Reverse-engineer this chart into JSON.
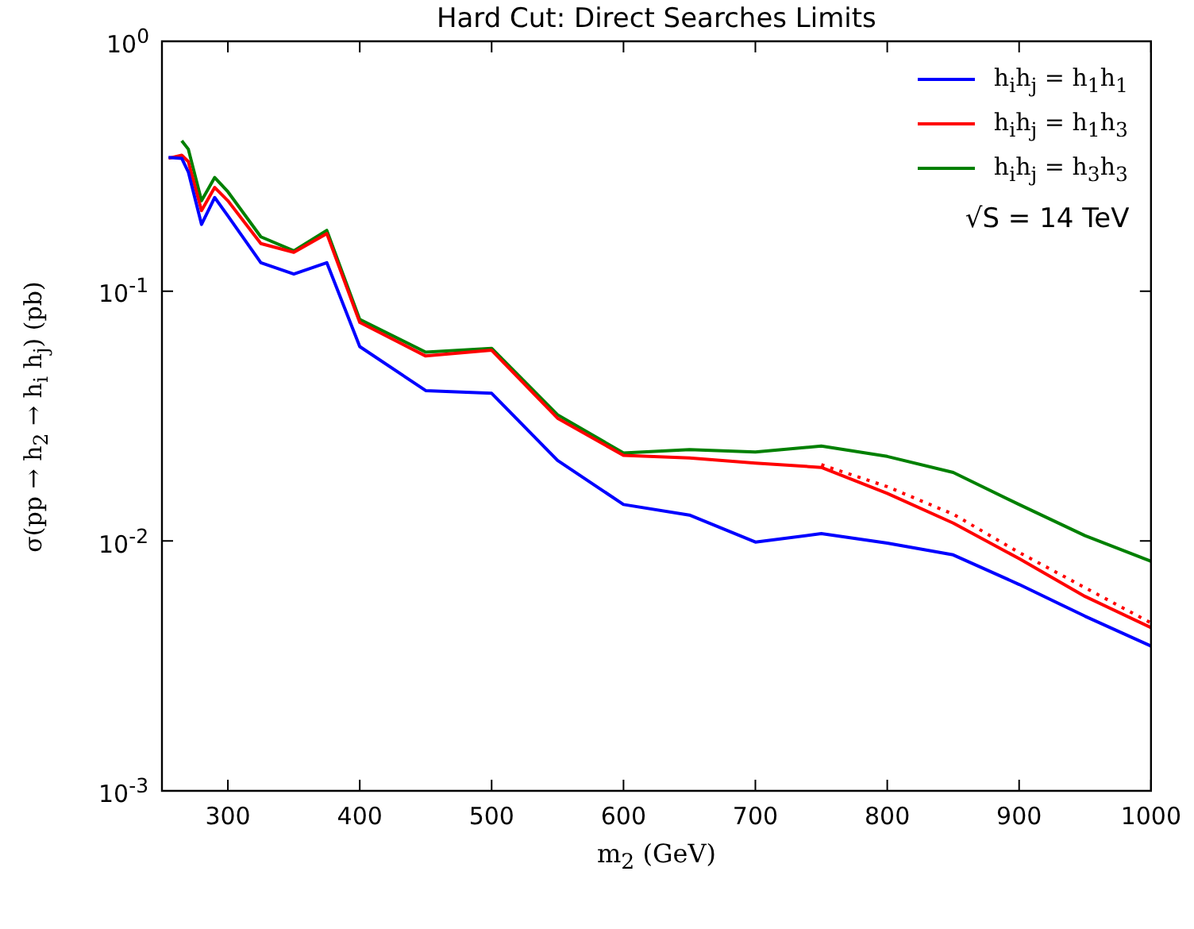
{
  "chart_data": {
    "type": "line",
    "title": "Hard Cut: Direct Searches Limits",
    "xlabel": "m$_{2}$ (GeV)",
    "ylabel": "σ(pp → h$_{2}$ → h$_{i}$ h$_{j}$) (pb)",
    "log": "y",
    "xlim": [
      250,
      1000
    ],
    "ylim": [
      0.001,
      1
    ],
    "xticks": [
      300,
      400,
      500,
      600,
      700,
      800,
      900,
      1000
    ],
    "yticks": [
      {
        "value": 0.001,
        "label": "10$^{-3}$"
      },
      {
        "value": 0.01,
        "label": "10$^{-2}$"
      },
      {
        "value": 0.1,
        "label": "10$^{-1}$"
      },
      {
        "value": 1,
        "label": "10$^{0}$"
      }
    ],
    "grid": false,
    "legend": "top right",
    "marker": "none",
    "annotations": [
      "√S = 14 TeV"
    ],
    "series": [
      {
        "name": "h$_{i}$h$_{j}$ = h$_{1}$h$_{1}$",
        "color": "#0000ff",
        "x": [
          255,
          265,
          270,
          280,
          290,
          300,
          325,
          350,
          375,
          400,
          450,
          500,
          550,
          600,
          650,
          700,
          750,
          800,
          850,
          900,
          950,
          1000
        ],
        "values": [
          0.343,
          0.34,
          0.3,
          0.185,
          0.237,
          0.2,
          0.13,
          0.117,
          0.13,
          0.06,
          0.04,
          0.039,
          0.021,
          0.014,
          0.0127,
          0.0099,
          0.0107,
          0.0098,
          0.0088,
          0.0067,
          0.005,
          0.0038
        ]
      },
      {
        "name": "h$_{i}$h$_{j}$ = h$_{1}$h$_{3}$",
        "color": "#ff0000",
        "x": [
          255,
          265,
          270,
          280,
          290,
          300,
          325,
          350,
          375,
          400,
          450,
          500,
          550,
          600,
          650,
          700,
          750,
          800,
          850,
          900,
          950,
          1000
        ],
        "values": [
          0.34,
          0.35,
          0.33,
          0.21,
          0.26,
          0.23,
          0.155,
          0.143,
          0.17,
          0.075,
          0.055,
          0.058,
          0.031,
          0.022,
          0.0215,
          0.0205,
          0.0197,
          0.0155,
          0.0118,
          0.0085,
          0.006,
          0.0045
        ]
      },
      {
        "color": "#ff0000",
        "line_style": "dotted",
        "x": [
          750,
          800,
          850,
          900,
          950,
          1000
        ],
        "values": [
          0.0202,
          0.0165,
          0.0128,
          0.009,
          0.0065,
          0.0047
        ]
      },
      {
        "name": "h$_{i}$h$_{j}$ = h$_{3}$h$_{3}$",
        "color": "#008000",
        "x": [
          265,
          270,
          280,
          290,
          300,
          325,
          350,
          375,
          400,
          450,
          500,
          550,
          600,
          650,
          700,
          750,
          800,
          850,
          900,
          950,
          1000
        ],
        "values": [
          0.4,
          0.37,
          0.23,
          0.285,
          0.25,
          0.165,
          0.145,
          0.175,
          0.077,
          0.057,
          0.059,
          0.032,
          0.0225,
          0.0232,
          0.0227,
          0.024,
          0.0218,
          0.0188,
          0.014,
          0.0105,
          0.0083
        ]
      }
    ]
  }
}
